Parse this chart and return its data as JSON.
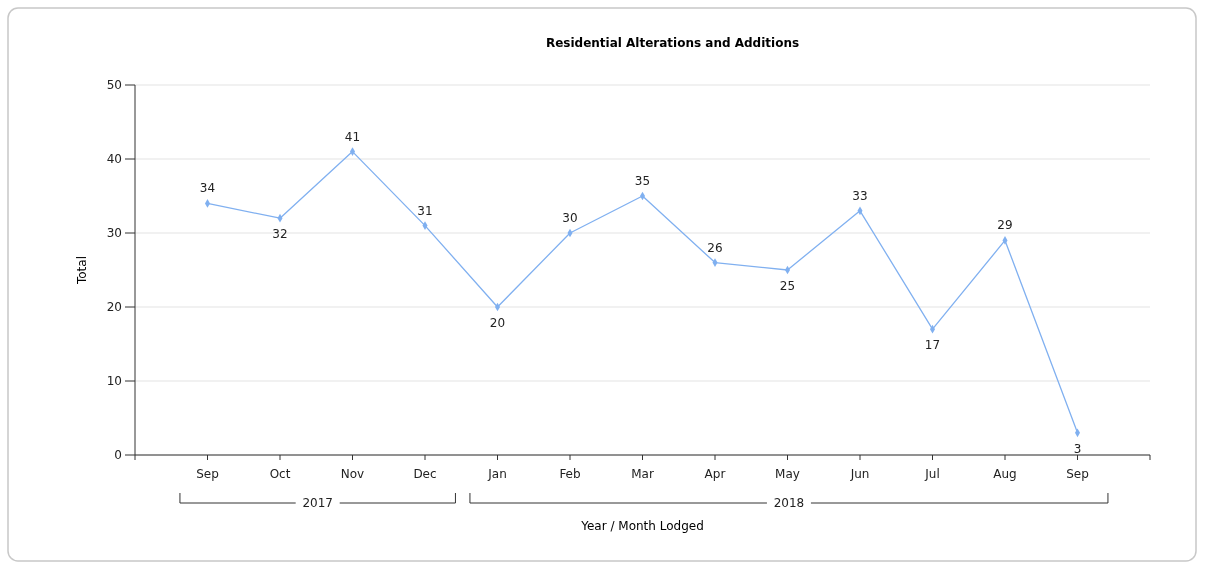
{
  "chart_data": {
    "type": "line",
    "title": "Residential Alterations and Additions",
    "xlabel": "Year / Month Lodged",
    "ylabel": "Total",
    "categories": [
      "Sep",
      "Oct",
      "Nov",
      "Dec",
      "Jan",
      "Feb",
      "Mar",
      "Apr",
      "May",
      "Jun",
      "Jul",
      "Aug",
      "Sep"
    ],
    "series": [
      {
        "color": "#80b0f0",
        "values": [
          34,
          32,
          41,
          31,
          20,
          30,
          35,
          26,
          25,
          33,
          17,
          29,
          3
        ]
      }
    ],
    "annotations": [
      "2017",
      "2018"
    ],
    "ylim": [
      0,
      50
    ],
    "yticks": [
      0,
      10,
      20,
      30,
      40,
      50
    ],
    "grid": "y",
    "marker": "diamond",
    "data_labels": true
  }
}
